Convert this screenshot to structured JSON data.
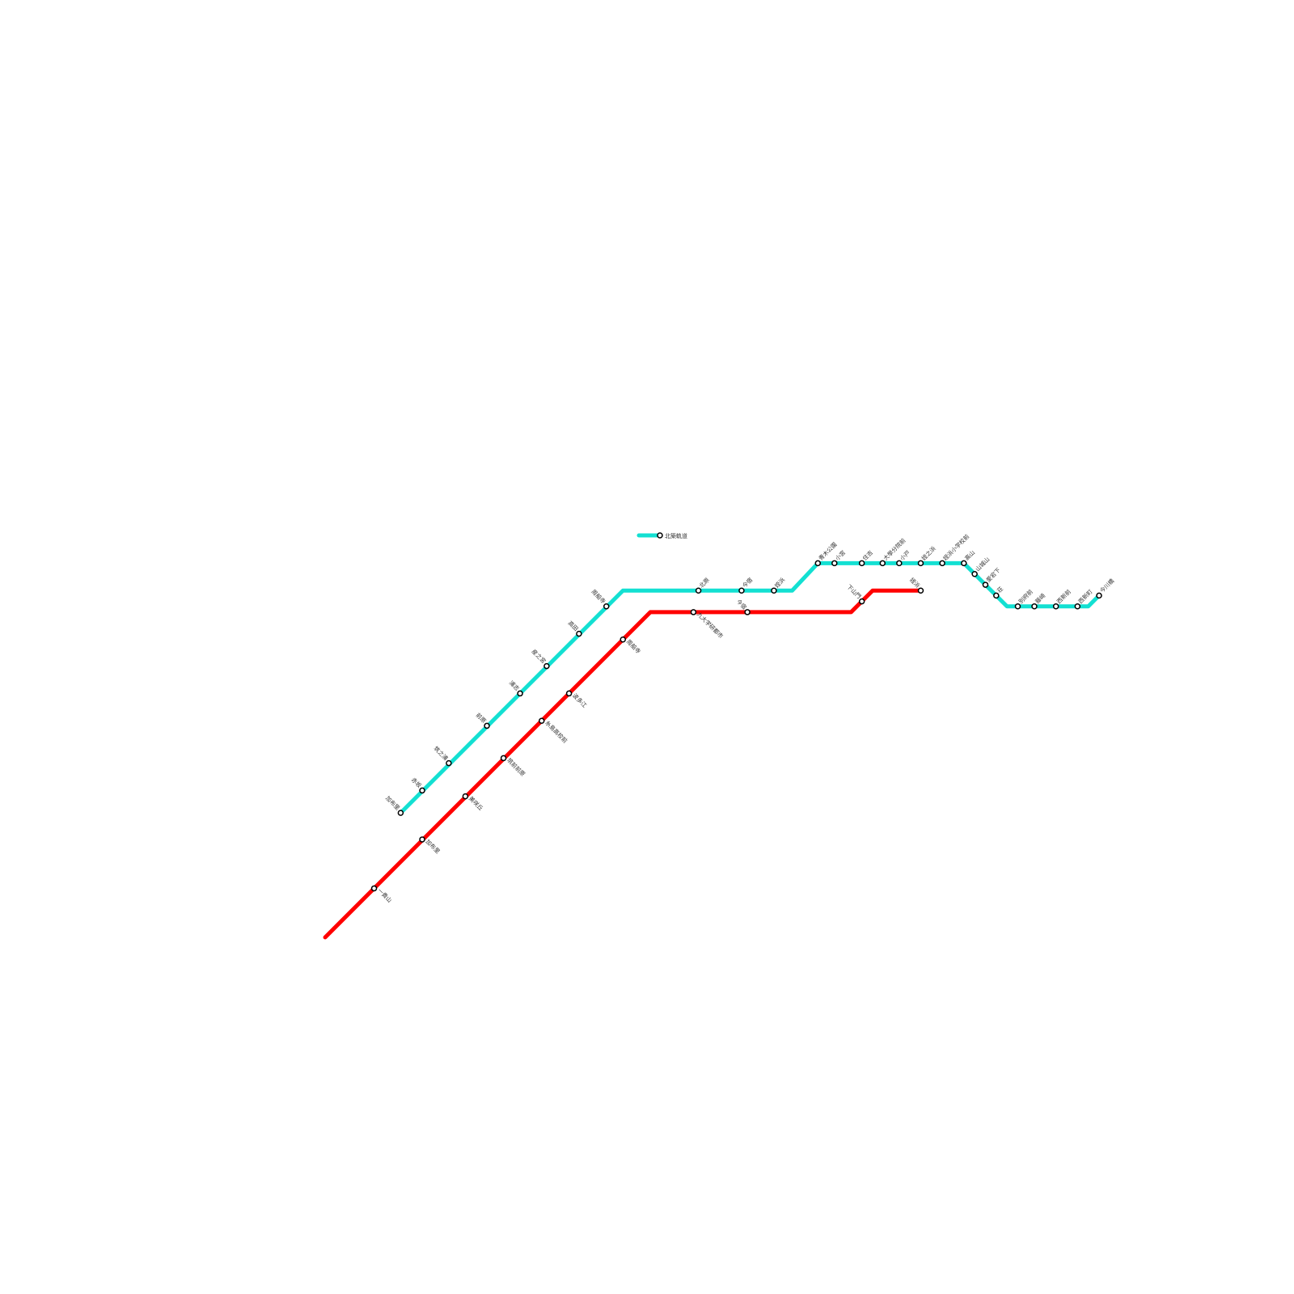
{
  "colors": {
    "cyan_line": "#13e0d2",
    "red_line": "#ff0000",
    "station_fill": "#ffffff",
    "station_stroke": "#000000"
  },
  "legend": {
    "label": "北築軌道"
  },
  "cyan_line": {
    "stations": [
      "加布里",
      "赤坂",
      "筑之浦",
      "前原",
      "浦志",
      "産之宮",
      "高田",
      "周船寺",
      "北原",
      "今宿",
      "姪浜",
      "青木公園",
      "小宮",
      "住吉",
      "大學分院前",
      "小戸",
      "姪之浜",
      "姪浜小学校前",
      "高山",
      "山城山",
      "愛宕下",
      "荘",
      "別府前",
      "藤崎",
      "西新前",
      "西新町",
      "今川橋"
    ]
  },
  "red_line": {
    "stations": [
      "一貴山",
      "加布里",
      "美咲丘",
      "筑前前原",
      "糸島高校前",
      "波多江",
      "周船寺",
      "九大学研都市",
      "今宿",
      "下山門",
      "姪浜"
    ]
  }
}
